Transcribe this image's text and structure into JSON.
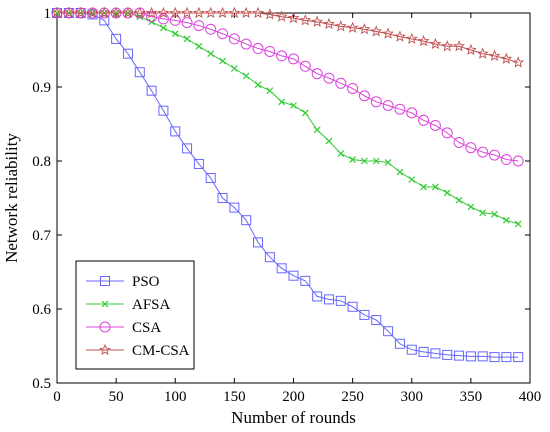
{
  "chart_data": {
    "type": "line",
    "title": "",
    "xlabel": "Number of rounds",
    "ylabel": "Network reliability",
    "xlim": [
      0,
      400
    ],
    "ylim": [
      0.5,
      1.0
    ],
    "x_ticks": [
      "0",
      "50",
      "100",
      "150",
      "200",
      "250",
      "300",
      "350",
      "400"
    ],
    "y_ticks": [
      "0.5",
      "0.6",
      "0.7",
      "0.8",
      "0.9",
      "1"
    ],
    "grid": false,
    "legend_position": "bottom-left",
    "x": [
      0,
      10,
      20,
      30,
      40,
      50,
      60,
      70,
      80,
      90,
      100,
      110,
      120,
      130,
      140,
      150,
      160,
      170,
      180,
      190,
      200,
      210,
      220,
      230,
      240,
      250,
      260,
      270,
      280,
      290,
      300,
      310,
      320,
      330,
      340,
      350,
      360,
      370,
      380,
      390
    ],
    "series": [
      {
        "name": "PSO",
        "color": "#6666ff",
        "marker": "square",
        "values": [
          1.0,
          1.0,
          1.0,
          0.998,
          0.99,
          0.965,
          0.945,
          0.92,
          0.895,
          0.868,
          0.84,
          0.817,
          0.796,
          0.777,
          0.75,
          0.737,
          0.72,
          0.69,
          0.67,
          0.655,
          0.645,
          0.638,
          0.617,
          0.613,
          0.611,
          0.603,
          0.592,
          0.585,
          0.57,
          0.553,
          0.545,
          0.542,
          0.54,
          0.538,
          0.537,
          0.536,
          0.536,
          0.535,
          0.535,
          0.535
        ]
      },
      {
        "name": "AFSA",
        "color": "#33cc33",
        "marker": "x",
        "values": [
          1.0,
          1.0,
          1.0,
          1.0,
          1.0,
          1.0,
          1.0,
          0.995,
          0.988,
          0.98,
          0.972,
          0.965,
          0.955,
          0.945,
          0.935,
          0.925,
          0.915,
          0.903,
          0.895,
          0.88,
          0.875,
          0.865,
          0.842,
          0.827,
          0.81,
          0.802,
          0.8,
          0.8,
          0.798,
          0.785,
          0.775,
          0.765,
          0.765,
          0.757,
          0.747,
          0.738,
          0.73,
          0.728,
          0.72,
          0.715
        ]
      },
      {
        "name": "CSA",
        "color": "#dd44dd",
        "marker": "circle",
        "values": [
          1.0,
          1.0,
          1.0,
          1.0,
          1.0,
          1.0,
          1.0,
          1.0,
          0.995,
          0.992,
          0.99,
          0.987,
          0.983,
          0.978,
          0.972,
          0.965,
          0.958,
          0.952,
          0.948,
          0.942,
          0.938,
          0.928,
          0.918,
          0.912,
          0.905,
          0.898,
          0.888,
          0.88,
          0.875,
          0.87,
          0.865,
          0.855,
          0.848,
          0.838,
          0.825,
          0.818,
          0.812,
          0.808,
          0.802,
          0.8
        ]
      },
      {
        "name": "CM-CSA",
        "color": "#c05050",
        "marker": "star",
        "values": [
          1.0,
          1.0,
          1.0,
          1.0,
          1.0,
          1.0,
          1.0,
          1.0,
          1.0,
          1.0,
          1.0,
          1.0,
          1.0,
          1.0,
          1.0,
          1.0,
          1.0,
          1.0,
          0.998,
          0.995,
          0.993,
          0.99,
          0.988,
          0.985,
          0.982,
          0.98,
          0.978,
          0.975,
          0.972,
          0.968,
          0.965,
          0.962,
          0.958,
          0.955,
          0.955,
          0.95,
          0.945,
          0.942,
          0.938,
          0.933
        ]
      }
    ]
  }
}
